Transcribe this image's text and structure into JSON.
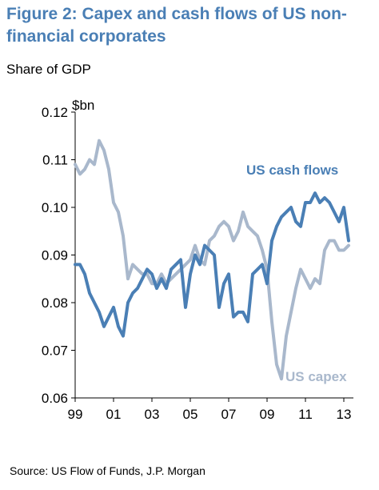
{
  "header": {
    "title": "Figure 2: Capex and cash flows of US non-financial corporates",
    "subtitle": "Share of GDP"
  },
  "footer": {
    "source": "Source: US Flow of Funds, J.P. Morgan"
  },
  "colors": {
    "title": "#4a7fb5",
    "cash_flows": "#4a7fb5",
    "capex": "#a9b8cc"
  },
  "chart_data": {
    "type": "line",
    "unit_label": "$bn",
    "ylim": [
      0.06,
      0.12
    ],
    "yticks": [
      "0.12",
      "0.11",
      "0.10",
      "0.09",
      "0.08",
      "0.07",
      "0.06"
    ],
    "ytick_values": [
      0.12,
      0.11,
      0.1,
      0.09,
      0.08,
      0.07,
      0.06
    ],
    "xlim": [
      1999.0,
      2013.5
    ],
    "xticks": [
      "99",
      "01",
      "03",
      "05",
      "07",
      "09",
      "11",
      "13"
    ],
    "xtick_values": [
      1999,
      2001,
      2003,
      2005,
      2007,
      2009,
      2011,
      2013
    ],
    "grid": false,
    "legend": "inline labels",
    "series": [
      {
        "name": "US cash flows",
        "x": [
          1999.0,
          1999.25,
          1999.5,
          1999.75,
          2000.0,
          2000.25,
          2000.5,
          2000.75,
          2001.0,
          2001.25,
          2001.5,
          2001.75,
          2002.0,
          2002.25,
          2002.5,
          2002.75,
          2003.0,
          2003.25,
          2003.5,
          2003.75,
          2004.0,
          2004.25,
          2004.5,
          2004.75,
          2005.0,
          2005.25,
          2005.5,
          2005.75,
          2006.0,
          2006.25,
          2006.5,
          2006.75,
          2007.0,
          2007.25,
          2007.5,
          2007.75,
          2008.0,
          2008.25,
          2008.5,
          2008.75,
          2009.0,
          2009.25,
          2009.5,
          2009.75,
          2010.0,
          2010.25,
          2010.5,
          2010.75,
          2011.0,
          2011.25,
          2011.5,
          2011.75,
          2012.0,
          2012.25,
          2012.5,
          2012.75,
          2013.0,
          2013.25
        ],
        "values": [
          0.088,
          0.088,
          0.086,
          0.082,
          0.08,
          0.078,
          0.075,
          0.077,
          0.079,
          0.075,
          0.073,
          0.08,
          0.082,
          0.083,
          0.085,
          0.087,
          0.086,
          0.083,
          0.085,
          0.083,
          0.087,
          0.088,
          0.089,
          0.079,
          0.086,
          0.09,
          0.088,
          0.092,
          0.091,
          0.09,
          0.079,
          0.084,
          0.086,
          0.077,
          0.078,
          0.078,
          0.076,
          0.086,
          0.087,
          0.088,
          0.084,
          0.093,
          0.096,
          0.098,
          0.099,
          0.1,
          0.097,
          0.096,
          0.101,
          0.101,
          0.103,
          0.101,
          0.102,
          0.101,
          0.099,
          0.097,
          0.1,
          0.093
        ]
      },
      {
        "name": "US capex",
        "x": [
          1999.0,
          1999.25,
          1999.5,
          1999.75,
          2000.0,
          2000.25,
          2000.5,
          2000.75,
          2001.0,
          2001.25,
          2001.5,
          2001.75,
          2002.0,
          2002.25,
          2002.5,
          2002.75,
          2003.0,
          2003.25,
          2003.5,
          2003.75,
          2004.0,
          2004.25,
          2004.5,
          2004.75,
          2005.0,
          2005.25,
          2005.5,
          2005.75,
          2006.0,
          2006.25,
          2006.5,
          2006.75,
          2007.0,
          2007.25,
          2007.5,
          2007.75,
          2008.0,
          2008.25,
          2008.5,
          2008.75,
          2009.0,
          2009.25,
          2009.5,
          2009.75,
          2010.0,
          2010.25,
          2010.5,
          2010.75,
          2011.0,
          2011.25,
          2011.5,
          2011.75,
          2012.0,
          2012.25,
          2012.5,
          2012.75,
          2013.0,
          2013.25
        ],
        "values": [
          0.109,
          0.107,
          0.108,
          0.11,
          0.109,
          0.114,
          0.112,
          0.108,
          0.101,
          0.099,
          0.094,
          0.085,
          0.088,
          0.087,
          0.086,
          0.086,
          0.084,
          0.084,
          0.086,
          0.084,
          0.085,
          0.086,
          0.087,
          0.088,
          0.089,
          0.092,
          0.089,
          0.088,
          0.093,
          0.094,
          0.096,
          0.097,
          0.096,
          0.093,
          0.095,
          0.099,
          0.096,
          0.095,
          0.094,
          0.091,
          0.087,
          0.076,
          0.067,
          0.064,
          0.073,
          0.078,
          0.083,
          0.087,
          0.085,
          0.083,
          0.085,
          0.084,
          0.091,
          0.093,
          0.093,
          0.091,
          0.091,
          0.092
        ]
      }
    ],
    "annotations": [
      {
        "text": "US cash flows",
        "series": "US cash flows"
      },
      {
        "text": "US capex",
        "series": "US capex"
      }
    ]
  }
}
